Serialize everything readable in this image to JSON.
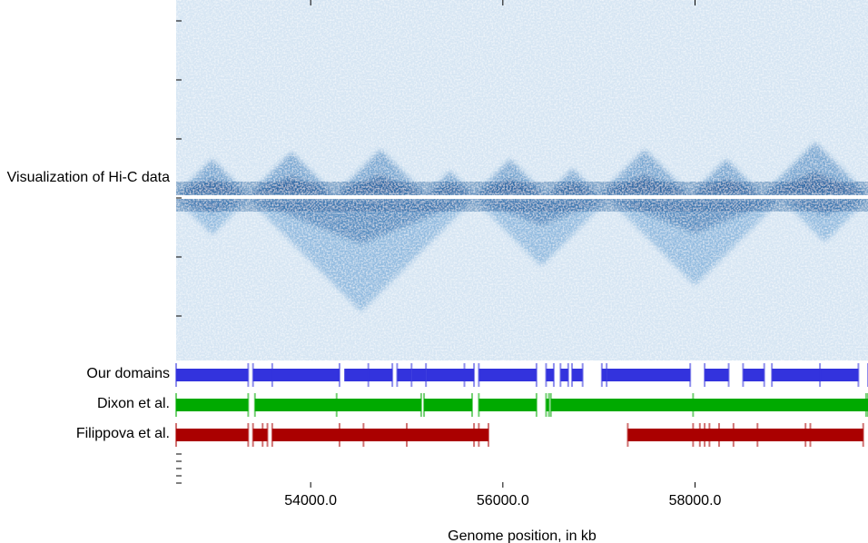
{
  "chart_data": {
    "type": "heatmap",
    "title": "",
    "xlabel": "Genome position, in kb",
    "xlim": [
      52600,
      59800
    ],
    "xticks": [
      54000,
      56000,
      58000
    ],
    "xtick_labels": [
      "54000.0",
      "56000.0",
      "58000.0"
    ],
    "heatmap": {
      "label": "Visualization of Hi-C data",
      "colormap": "Blues",
      "top_triangle_boundaries_kb": [
        52600,
        53350,
        54250,
        55200,
        55700,
        56450,
        57000,
        57950,
        58700,
        59800
      ],
      "bottom_triangle_boundaries_kb": [
        52600,
        53350,
        55700,
        57100,
        58900,
        59800
      ]
    },
    "tracks": [
      {
        "name": "Our domains",
        "color": "#3333dd",
        "domains": [
          [
            52600,
            53350
          ],
          [
            53400,
            54300
          ],
          [
            54350,
            54850
          ],
          [
            54900,
            55050
          ],
          [
            55050,
            55200
          ],
          [
            55200,
            55700
          ],
          [
            55750,
            56350
          ],
          [
            56450,
            56530
          ],
          [
            56600,
            56680
          ],
          [
            56720,
            56830
          ],
          [
            57030,
            57080
          ],
          [
            57080,
            57950
          ],
          [
            58100,
            58350
          ],
          [
            58500,
            58720
          ],
          [
            58800,
            59700
          ]
        ],
        "boundaries": [
          52600,
          53350,
          53400,
          53600,
          54300,
          54600,
          54850,
          54900,
          55050,
          55200,
          55600,
          55700,
          55750,
          56350,
          56450,
          56530,
          56600,
          56680,
          56720,
          56830,
          57030,
          57080,
          57950,
          58100,
          58350,
          58500,
          58720,
          58800,
          59300,
          59700,
          59800
        ]
      },
      {
        "name": "Dixon et al.",
        "color": "#00aa00",
        "domains": [
          [
            52600,
            53350
          ],
          [
            53420,
            55150
          ],
          [
            55180,
            55680
          ],
          [
            55750,
            56350
          ],
          [
            56450,
            56480
          ],
          [
            56500,
            59800
          ]
        ],
        "boundaries": [
          52600,
          53350,
          53420,
          54270,
          55150,
          55180,
          55680,
          55750,
          56350,
          56450,
          56480,
          56500,
          57980,
          59780,
          59800
        ]
      },
      {
        "name": "Filippova et al.",
        "color": "#aa0000",
        "domains": [
          [
            52600,
            53350
          ],
          [
            53400,
            53550
          ],
          [
            53600,
            55850
          ],
          [
            57300,
            59750
          ]
        ],
        "boundaries": [
          52600,
          53350,
          53400,
          53500,
          53550,
          53600,
          54300,
          54550,
          55000,
          55700,
          55750,
          55850,
          57300,
          57980,
          58050,
          58100,
          58150,
          58250,
          58400,
          58650,
          59150,
          59200,
          59750
        ]
      }
    ]
  }
}
